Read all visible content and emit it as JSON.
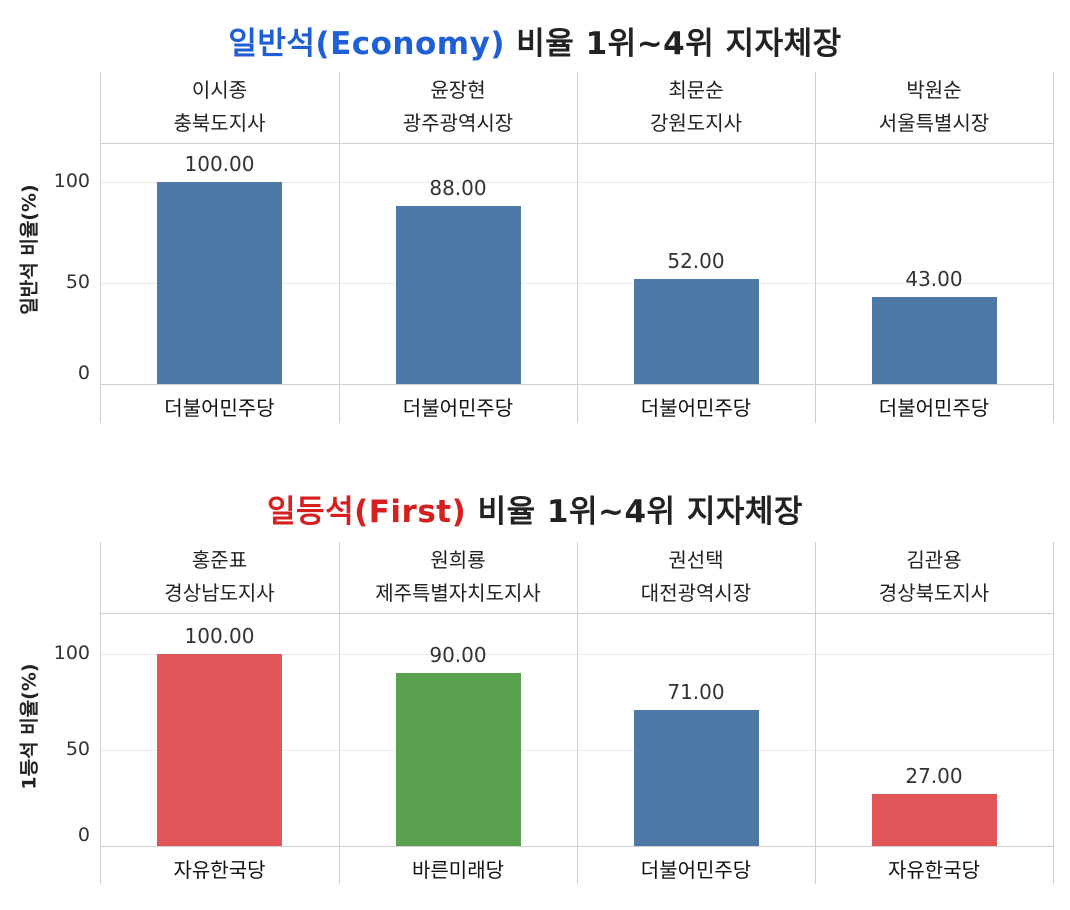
{
  "chart_data": [
    {
      "type": "bar",
      "title_highlight": "일반석(Economy)",
      "title_rest": " 비율 1위~4위 지자체장",
      "title_color": "#1f5fd6",
      "ylabel": "일반석 비율(%)",
      "yticks": [
        "100",
        "50",
        "0"
      ],
      "ylim": [
        0,
        120
      ],
      "categories": [
        {
          "name": "이시종",
          "office": "충북도지사",
          "party": "더불어민주당",
          "value": 100,
          "label": "100.00",
          "color": "#4e79a7"
        },
        {
          "name": "윤장현",
          "office": "광주광역시장",
          "party": "더불어민주당",
          "value": 88,
          "label": "88.00",
          "color": "#4e79a7"
        },
        {
          "name": "최문순",
          "office": "강원도지사",
          "party": "더불어민주당",
          "value": 52,
          "label": "52.00",
          "color": "#4e79a7"
        },
        {
          "name": "박원순",
          "office": "서울특별시장",
          "party": "더불어민주당",
          "value": 43,
          "label": "43.00",
          "color": "#4e79a7"
        }
      ]
    },
    {
      "type": "bar",
      "title_highlight": "일등석(First)",
      "title_rest": " 비율 1위~4위 지자체장",
      "title_color": "#d61f1f",
      "ylabel": "1등석 비율(%)",
      "yticks": [
        "100",
        "50",
        "0"
      ],
      "ylim": [
        0,
        120
      ],
      "categories": [
        {
          "name": "홍준표",
          "office": "경상남도지사",
          "party": "자유한국당",
          "value": 100,
          "label": "100.00",
          "color": "#e15759"
        },
        {
          "name": "원희룡",
          "office": "제주특별자치도지사",
          "party": "바른미래당",
          "value": 90,
          "label": "90.00",
          "color": "#59a14f"
        },
        {
          "name": "권선택",
          "office": "대전광역시장",
          "party": "더불어민주당",
          "value": 71,
          "label": "71.00",
          "color": "#4e79a7"
        },
        {
          "name": "김관용",
          "office": "경상북도지사",
          "party": "자유한국당",
          "value": 27,
          "label": "27.00",
          "color": "#e15759"
        }
      ]
    }
  ]
}
